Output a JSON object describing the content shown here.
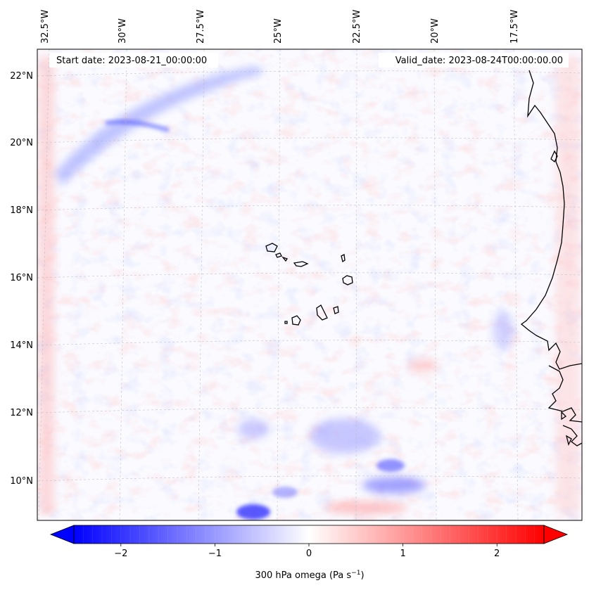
{
  "map": {
    "lon_ticks": [
      "32.5°W",
      "30°W",
      "27.5°W",
      "25°W",
      "22.5°W",
      "20°W",
      "17.5°W"
    ],
    "lat_ticks": [
      "22°N",
      "20°N",
      "18°N",
      "16°N",
      "14°N",
      "12°N",
      "10°N"
    ],
    "start_date": "Start date: 2023-08-21_00:00:00",
    "valid_date": "Valid_date: 2023-08-24T00:00:00.00"
  },
  "colorbar": {
    "tick_labels": [
      "−2",
      "−1",
      "0",
      "1",
      "2"
    ],
    "tick_values": [
      -2,
      -1,
      0,
      1,
      2
    ],
    "vmin": -2.5,
    "vmax": 2.5,
    "label_main": "300 hPa omega (Pa s",
    "label_sup": "−1",
    "label_end": ")",
    "colors": {
      "low": "#0000ff",
      "mid": "#ffffff",
      "high": "#ff0000"
    }
  },
  "colors": {
    "coastline": "#000000",
    "grid": "#b8b8b8",
    "frame": "#000000"
  }
}
